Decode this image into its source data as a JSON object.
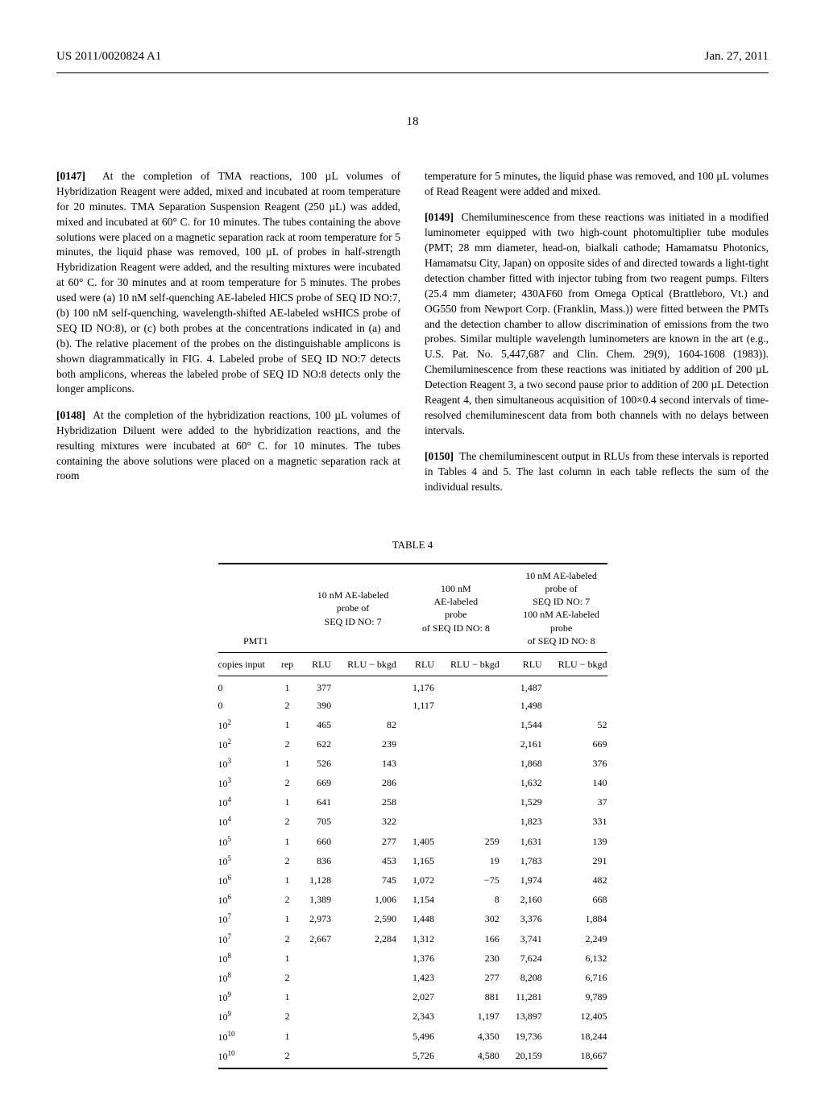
{
  "header": {
    "left": "US 2011/0020824 A1",
    "right": "Jan. 27, 2011"
  },
  "page_number": "18",
  "paragraphs": {
    "p147": {
      "label": "[0147]",
      "text": "At the completion of TMA reactions, 100 µL volumes of Hybridization Reagent were added, mixed and incubated at room temperature for 20 minutes. TMA Separation Suspension Reagent (250 µL) was added, mixed and incubated at 60° C. for 10 minutes. The tubes containing the above solutions were placed on a magnetic separation rack at room temperature for 5 minutes, the liquid phase was removed, 100 µL of probes in half-strength Hybridization Reagent were added, and the resulting mixtures were incubated at 60° C. for 30 minutes and at room temperature for 5 minutes. The probes used were (a) 10 nM self-quenching AE-labeled HICS probe of SEQ ID NO:7, (b) 100 nM self-quenching, wavelength-shifted AE-labeled wsHICS probe of SEQ ID NO:8), or (c) both probes at the concentrations indicated in (a) and (b). The relative placement of the probes on the distinguishable amplicons is shown diagrammatically in FIG. 4. Labeled probe of SEQ ID NO:7 detects both amplicons, whereas the labeled probe of SEQ ID NO:8 detects only the longer amplicons."
    },
    "p148": {
      "label": "[0148]",
      "text": "At the completion of the hybridization reactions, 100 µL volumes of Hybridization Diluent were added to the hybridization reactions, and the resulting mixtures were incubated at 60° C. for 10 minutes. The tubes containing the above solutions were placed on a magnetic separation rack at room"
    },
    "p148b": {
      "text": "temperature for 5 minutes, the liquid phase was removed, and 100 µL volumes of Read Reagent were added and mixed."
    },
    "p149": {
      "label": "[0149]",
      "text": "Chemiluminescence from these reactions was initiated in a modified luminometer equipped with two high-count photomultiplier tube modules (PMT; 28 mm diameter, head-on, bialkali cathode; Hamamatsu Photonics, Hamamatsu City, Japan) on opposite sides of and directed towards a light-tight detection chamber fitted with injector tubing from two reagent pumps. Filters (25.4 mm diameter; 430AF60 from Omega Optical (Brattleboro, Vt.) and OG550 from Newport Corp. (Franklin, Mass.)) were fitted between the PMTs and the detection chamber to allow discrimination of emissions from the two probes. Similar multiple wavelength luminometers are known in the art (e.g., U.S. Pat. No. 5,447,687 and Clin. Chem. 29(9), 1604-1608 (1983)). Chemiluminescence from these reactions was initiated by addition of 200 µL Detection Reagent 3, a two second pause prior to addition of 200 µL Detection Reagent 4, then simultaneous acquisition of 100×0.4 second intervals of time-resolved chemiluminescent data from both channels with no delays between intervals."
    },
    "p150": {
      "label": "[0150]",
      "text": "The chemiluminescent output in RLUs from these intervals is reported in Tables 4 and 5. The last column in each table reflects the sum of the individual results."
    }
  },
  "table": {
    "caption": "TABLE 4",
    "pmt_label": "PMT1",
    "group_headers": {
      "g1": "10 nM AE-labeled\nprobe of\nSEQ ID NO: 7",
      "g2": "100 nM\nAE-labeled\nprobe\nof SEQ ID NO: 8",
      "g3": "10 nM AE-labeled\nprobe of\nSEQ ID NO: 7\n100 nM AE-labeled\nprobe\nof SEQ ID NO: 8"
    },
    "col_headers": {
      "copies": "copies input",
      "rep": "rep",
      "rlu": "RLU",
      "rlubkgd": "RLU − bkgd"
    },
    "rows": [
      {
        "copies": "0",
        "rep": "1",
        "r1": "377",
        "b1": "",
        "r2": "1,176",
        "b2": "",
        "r3": "1,487",
        "b3": ""
      },
      {
        "copies": "0",
        "rep": "2",
        "r1": "390",
        "b1": "",
        "r2": "1,117",
        "b2": "",
        "r3": "1,498",
        "b3": ""
      },
      {
        "copies": "10^2",
        "rep": "1",
        "r1": "465",
        "b1": "82",
        "r2": "",
        "b2": "",
        "r3": "1,544",
        "b3": "52"
      },
      {
        "copies": "10^2",
        "rep": "2",
        "r1": "622",
        "b1": "239",
        "r2": "",
        "b2": "",
        "r3": "2,161",
        "b3": "669"
      },
      {
        "copies": "10^3",
        "rep": "1",
        "r1": "526",
        "b1": "143",
        "r2": "",
        "b2": "",
        "r3": "1,868",
        "b3": "376"
      },
      {
        "copies": "10^3",
        "rep": "2",
        "r1": "669",
        "b1": "286",
        "r2": "",
        "b2": "",
        "r3": "1,632",
        "b3": "140"
      },
      {
        "copies": "10^4",
        "rep": "1",
        "r1": "641",
        "b1": "258",
        "r2": "",
        "b2": "",
        "r3": "1,529",
        "b3": "37"
      },
      {
        "copies": "10^4",
        "rep": "2",
        "r1": "705",
        "b1": "322",
        "r2": "",
        "b2": "",
        "r3": "1,823",
        "b3": "331"
      },
      {
        "copies": "10^5",
        "rep": "1",
        "r1": "660",
        "b1": "277",
        "r2": "1,405",
        "b2": "259",
        "r3": "1,631",
        "b3": "139"
      },
      {
        "copies": "10^5",
        "rep": "2",
        "r1": "836",
        "b1": "453",
        "r2": "1,165",
        "b2": "19",
        "r3": "1,783",
        "b3": "291"
      },
      {
        "copies": "10^6",
        "rep": "1",
        "r1": "1,128",
        "b1": "745",
        "r2": "1,072",
        "b2": "−75",
        "r3": "1,974",
        "b3": "482"
      },
      {
        "copies": "10^6",
        "rep": "2",
        "r1": "1,389",
        "b1": "1,006",
        "r2": "1,154",
        "b2": "8",
        "r3": "2,160",
        "b3": "668"
      },
      {
        "copies": "10^7",
        "rep": "1",
        "r1": "2,973",
        "b1": "2,590",
        "r2": "1,448",
        "b2": "302",
        "r3": "3,376",
        "b3": "1,884"
      },
      {
        "copies": "10^7",
        "rep": "2",
        "r1": "2,667",
        "b1": "2,284",
        "r2": "1,312",
        "b2": "166",
        "r3": "3,741",
        "b3": "2,249"
      },
      {
        "copies": "10^8",
        "rep": "1",
        "r1": "",
        "b1": "",
        "r2": "1,376",
        "b2": "230",
        "r3": "7,624",
        "b3": "6,132"
      },
      {
        "copies": "10^8",
        "rep": "2",
        "r1": "",
        "b1": "",
        "r2": "1,423",
        "b2": "277",
        "r3": "8,208",
        "b3": "6,716"
      },
      {
        "copies": "10^9",
        "rep": "1",
        "r1": "",
        "b1": "",
        "r2": "2,027",
        "b2": "881",
        "r3": "11,281",
        "b3": "9,789"
      },
      {
        "copies": "10^9",
        "rep": "2",
        "r1": "",
        "b1": "",
        "r2": "2,343",
        "b2": "1,197",
        "r3": "13,897",
        "b3": "12,405"
      },
      {
        "copies": "10^10",
        "rep": "1",
        "r1": "",
        "b1": "",
        "r2": "5,496",
        "b2": "4,350",
        "r3": "19,736",
        "b3": "18,244"
      },
      {
        "copies": "10^10",
        "rep": "2",
        "r1": "",
        "b1": "",
        "r2": "5,726",
        "b2": "4,580",
        "r3": "20,159",
        "b3": "18,667"
      }
    ]
  }
}
